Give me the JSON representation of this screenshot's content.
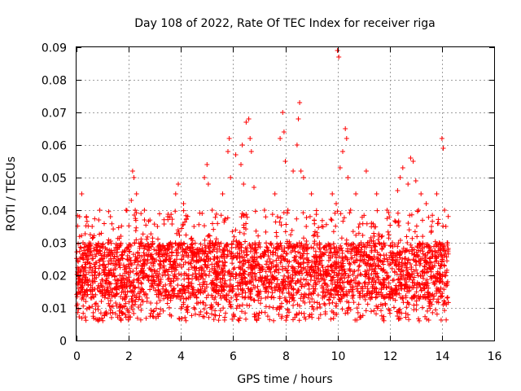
{
  "chart_data": {
    "type": "scatter",
    "title": "Day 108 of 2022, Rate Of TEC Index for receiver riga",
    "xlabel": "GPS time / hours",
    "ylabel": "ROTI / TECUs",
    "xlim": [
      0,
      16
    ],
    "ylim": [
      0,
      0.09
    ],
    "xticks": [
      0,
      2,
      4,
      6,
      8,
      10,
      12,
      14,
      16
    ],
    "yticks": [
      0,
      0.01,
      0.02,
      0.03,
      0.04,
      0.05,
      0.06,
      0.07,
      0.08,
      0.09
    ],
    "xtick_labels": [
      "0",
      "2",
      "4",
      "6",
      "8",
      "10",
      "12",
      "14",
      "16"
    ],
    "ytick_labels": [
      "0",
      "0.01",
      "0.02",
      "0.03",
      "0.04",
      "0.05",
      "0.06",
      "0.07",
      "0.08",
      "0.09"
    ],
    "grid": true,
    "marker": "plus",
    "color": "#ff0000",
    "series": [
      {
        "x": [
          0.05,
          0.12,
          0.2,
          0.25,
          0.3,
          0.38,
          0.45,
          0.5,
          0.6,
          0.7,
          0.85,
          0.95,
          1.0,
          1.1,
          1.2,
          1.3,
          1.5,
          1.7,
          1.8,
          1.9,
          2.0,
          2.1,
          2.15,
          2.2,
          2.25,
          2.3,
          2.4,
          2.5,
          2.6,
          2.7,
          2.9,
          3.1,
          3.3,
          3.5,
          3.6,
          3.8,
          3.9,
          4.0,
          4.1,
          4.3,
          4.5,
          4.7,
          4.9,
          5.0,
          5.05,
          5.1,
          5.2,
          5.4,
          5.6,
          5.8,
          5.85,
          5.9,
          6.1,
          6.3,
          6.35,
          6.4,
          6.5,
          6.6,
          6.65,
          6.7,
          6.8,
          7.0,
          7.2,
          7.4,
          7.6,
          7.7,
          7.8,
          7.9,
          7.95,
          8.0,
          8.1,
          8.3,
          8.45,
          8.5,
          8.55,
          8.6,
          8.7,
          8.8,
          9.0,
          9.2,
          9.4,
          9.6,
          9.8,
          9.95,
          10.0,
          10.05,
          10.1,
          10.2,
          10.3,
          10.35,
          10.4,
          10.5,
          10.7,
          10.9,
          11.1,
          11.3,
          11.5,
          11.7,
          11.9,
          12.1,
          12.3,
          12.4,
          12.5,
          12.7,
          12.8,
          12.9,
          13.0,
          13.1,
          13.2,
          13.4,
          13.6,
          13.8,
          13.9,
          14.0,
          14.05,
          14.1,
          14.15,
          14.2
        ],
        "y": [
          0.02,
          0.038,
          0.045,
          0.03,
          0.015,
          0.038,
          0.025,
          0.01,
          0.035,
          0.02,
          0.037,
          0.012,
          0.025,
          0.018,
          0.03,
          0.038,
          0.022,
          0.032,
          0.015,
          0.04,
          0.028,
          0.043,
          0.052,
          0.05,
          0.04,
          0.045,
          0.02,
          0.03,
          0.04,
          0.012,
          0.025,
          0.035,
          0.02,
          0.038,
          0.03,
          0.045,
          0.048,
          0.03,
          0.042,
          0.02,
          0.035,
          0.028,
          0.05,
          0.054,
          0.048,
          0.03,
          0.04,
          0.02,
          0.045,
          0.058,
          0.062,
          0.05,
          0.057,
          0.054,
          0.06,
          0.048,
          0.067,
          0.068,
          0.062,
          0.058,
          0.047,
          0.03,
          0.04,
          0.025,
          0.045,
          0.038,
          0.062,
          0.07,
          0.064,
          0.055,
          0.04,
          0.052,
          0.06,
          0.068,
          0.073,
          0.052,
          0.05,
          0.035,
          0.045,
          0.025,
          0.035,
          0.02,
          0.045,
          0.042,
          0.089,
          0.087,
          0.053,
          0.058,
          0.065,
          0.062,
          0.05,
          0.04,
          0.045,
          0.03,
          0.052,
          0.036,
          0.045,
          0.028,
          0.04,
          0.03,
          0.046,
          0.05,
          0.053,
          0.048,
          0.056,
          0.055,
          0.049,
          0.04,
          0.045,
          0.042,
          0.035,
          0.045,
          0.03,
          0.062,
          0.059,
          0.04,
          0.035,
          0.03
        ],
        "dense_band": {
          "x_range": [
            0,
            14.25
          ],
          "y_low": 0.006,
          "y_core": [
            0.013,
            0.03
          ],
          "y_high": 0.04
        }
      }
    ]
  }
}
